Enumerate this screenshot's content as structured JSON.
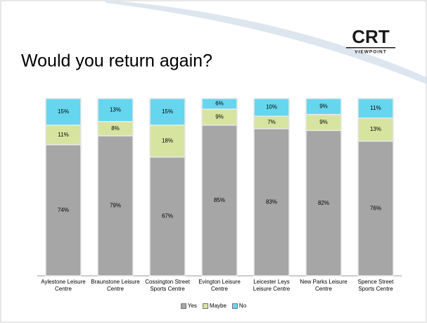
{
  "logo": {
    "text": "CRT",
    "subtitle": "VIEWPOINT"
  },
  "chart_data": {
    "type": "stacked_bar",
    "title": "Would you return again?",
    "categories": [
      "Aylestone Leisure Centre",
      "Braunstone Leisure Centre",
      "Cossington Street Sports Centre",
      "Evington Leisure Centre",
      "Leicester Leys Leisure Centre",
      "New Parks Leisure Centre",
      "Spence Street Sports Centre"
    ],
    "series": [
      {
        "name": "Yes",
        "color": "#a6a6a6",
        "values": [
          74,
          79,
          67,
          85,
          83,
          82,
          76
        ],
        "value_labels": [
          "74%",
          "79%",
          "67%",
          "85%",
          "83%",
          "82%",
          "76%"
        ]
      },
      {
        "name": "Maybe",
        "color": "#d7e4a0",
        "values": [
          11,
          8,
          18,
          9,
          7,
          9,
          13
        ],
        "value_labels": [
          "11%",
          "8%",
          "18%",
          "9%",
          "7%",
          "9%",
          "13%"
        ]
      },
      {
        "name": "No",
        "color": "#66d6ee",
        "values": [
          15,
          13,
          15,
          6,
          10,
          9,
          11
        ],
        "value_labels": [
          "15%",
          "13%",
          "15%",
          "6%",
          "10%",
          "9%",
          "11%"
        ]
      }
    ],
    "ylim": [
      0,
      100
    ],
    "legend": "bottom"
  }
}
